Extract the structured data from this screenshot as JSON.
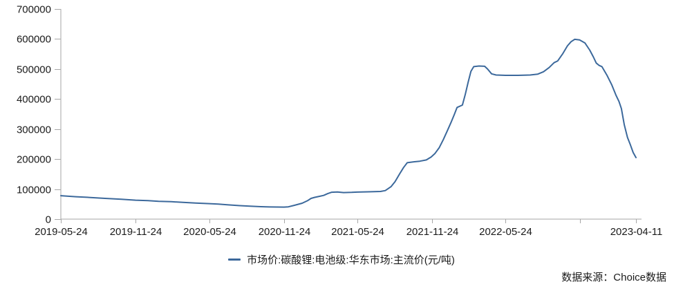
{
  "colors": {
    "line": "#3B689B",
    "axis": "#A6A6A6",
    "text": "#1a1a1a"
  },
  "legend": {
    "label": "市场价:碳酸锂:电池级:华东市场:主流价(元/吨)"
  },
  "source": {
    "label": "数据来源：Choice数据"
  },
  "chart_data": {
    "type": "line",
    "title": "",
    "series_name": "市场价:碳酸锂:电池级:华东市场:主流价(元/吨)",
    "ylabel": "",
    "xlabel": "",
    "unit": "元/吨",
    "ylim": [
      0,
      700000
    ],
    "grid": false,
    "legend_position": "bottom-center",
    "y_ticks": [
      0,
      100000,
      200000,
      300000,
      400000,
      500000,
      600000,
      700000
    ],
    "x_range": [
      "2019-05-24",
      "2023-04-11"
    ],
    "x_ticks": [
      {
        "date": "2019-05-24",
        "label": "2019-05-24"
      },
      {
        "date": "2019-11-24",
        "label": "2019-11-24"
      },
      {
        "date": "2020-05-24",
        "label": "2020-05-24"
      },
      {
        "date": "2020-11-24",
        "label": "2020-11-24"
      },
      {
        "date": "2021-05-24",
        "label": "2021-05-24"
      },
      {
        "date": "2021-11-24",
        "label": "2021-11-24"
      },
      {
        "date": "2022-05-24",
        "label": "2022-05-24"
      },
      {
        "date": "2022-11-24",
        "label": ""
      },
      {
        "date": "2023-04-11",
        "label": "2023-04-11"
      }
    ],
    "points": [
      [
        "2019-05-24",
        78000
      ],
      [
        "2019-06-30",
        74500
      ],
      [
        "2019-08-05",
        72000
      ],
      [
        "2019-09-10",
        69000
      ],
      [
        "2019-10-20",
        66000
      ],
      [
        "2019-11-24",
        63000
      ],
      [
        "2019-12-25",
        61500
      ],
      [
        "2020-01-20",
        59500
      ],
      [
        "2020-02-20",
        58000
      ],
      [
        "2020-03-20",
        56000
      ],
      [
        "2020-04-20",
        53500
      ],
      [
        "2020-05-24",
        51500
      ],
      [
        "2020-06-15",
        50000
      ],
      [
        "2020-07-10",
        47500
      ],
      [
        "2020-08-07",
        45000
      ],
      [
        "2020-09-01",
        43000
      ],
      [
        "2020-09-28",
        41500
      ],
      [
        "2020-10-20",
        40500
      ],
      [
        "2020-11-24",
        40000
      ],
      [
        "2020-12-05",
        41000
      ],
      [
        "2020-12-20",
        46000
      ],
      [
        "2021-01-08",
        53000
      ],
      [
        "2021-01-22",
        62000
      ],
      [
        "2021-01-30",
        69000
      ],
      [
        "2021-02-08",
        72500
      ],
      [
        "2021-02-20",
        76000
      ],
      [
        "2021-03-02",
        79000
      ],
      [
        "2021-03-12",
        85000
      ],
      [
        "2021-03-22",
        89500
      ],
      [
        "2021-04-05",
        90500
      ],
      [
        "2021-04-20",
        88500
      ],
      [
        "2021-05-10",
        89000
      ],
      [
        "2021-05-24",
        90000
      ],
      [
        "2021-06-20",
        91000
      ],
      [
        "2021-07-20",
        92000
      ],
      [
        "2021-08-01",
        95000
      ],
      [
        "2021-08-15",
        108000
      ],
      [
        "2021-08-25",
        125000
      ],
      [
        "2021-09-05",
        150000
      ],
      [
        "2021-09-15",
        172000
      ],
      [
        "2021-09-24",
        188000
      ],
      [
        "2021-10-10",
        191000
      ],
      [
        "2021-10-25",
        193000
      ],
      [
        "2021-11-10",
        197000
      ],
      [
        "2021-11-22",
        207000
      ],
      [
        "2021-12-01",
        218000
      ],
      [
        "2021-12-12",
        238000
      ],
      [
        "2021-12-22",
        265000
      ],
      [
        "2022-01-01",
        295000
      ],
      [
        "2022-01-10",
        322000
      ],
      [
        "2022-01-18",
        348000
      ],
      [
        "2022-01-25",
        372000
      ],
      [
        "2022-02-07",
        380000
      ],
      [
        "2022-02-14",
        415000
      ],
      [
        "2022-02-21",
        455000
      ],
      [
        "2022-02-28",
        492000
      ],
      [
        "2022-03-07",
        508000
      ],
      [
        "2022-03-20",
        510000
      ],
      [
        "2022-04-03",
        509000
      ],
      [
        "2022-04-10",
        500000
      ],
      [
        "2022-04-20",
        484000
      ],
      [
        "2022-05-01",
        480000
      ],
      [
        "2022-05-24",
        479000
      ],
      [
        "2022-06-24",
        479000
      ],
      [
        "2022-07-24",
        480000
      ],
      [
        "2022-08-12",
        483000
      ],
      [
        "2022-08-26",
        491000
      ],
      [
        "2022-09-09",
        505000
      ],
      [
        "2022-09-21",
        521000
      ],
      [
        "2022-09-30",
        527000
      ],
      [
        "2022-10-12",
        550000
      ],
      [
        "2022-10-24",
        577000
      ],
      [
        "2022-11-02",
        591000
      ],
      [
        "2022-11-11",
        599000
      ],
      [
        "2022-11-23",
        597000
      ],
      [
        "2022-12-06",
        587000
      ],
      [
        "2022-12-18",
        563000
      ],
      [
        "2022-12-27",
        540000
      ],
      [
        "2023-01-03",
        520000
      ],
      [
        "2023-01-10",
        512000
      ],
      [
        "2023-01-17",
        508000
      ],
      [
        "2023-01-30",
        478000
      ],
      [
        "2023-02-10",
        448000
      ],
      [
        "2023-02-21",
        412000
      ],
      [
        "2023-02-28",
        392000
      ],
      [
        "2023-03-06",
        368000
      ],
      [
        "2023-03-13",
        315000
      ],
      [
        "2023-03-21",
        272000
      ],
      [
        "2023-03-28",
        248000
      ],
      [
        "2023-04-04",
        222000
      ],
      [
        "2023-04-11",
        205000
      ]
    ]
  }
}
